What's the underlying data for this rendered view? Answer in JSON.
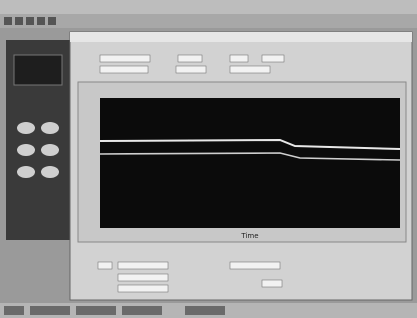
{
  "plot": {
    "x_axis_label": "Time"
  }
}
